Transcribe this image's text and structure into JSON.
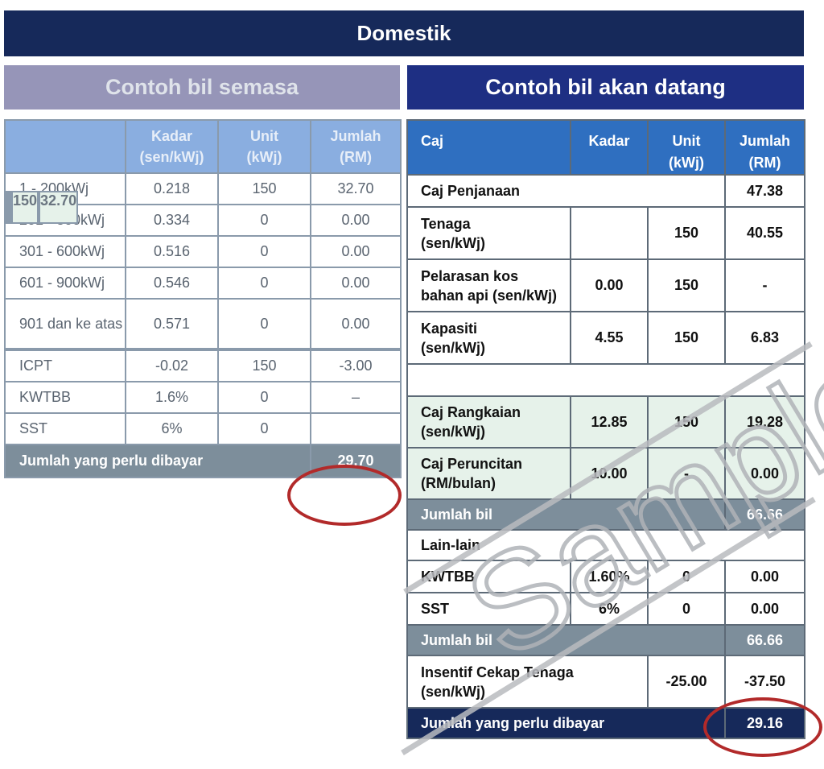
{
  "banner": "Domestik",
  "left": {
    "heading": "Contoh bil semasa",
    "headers": [
      "",
      "Kadar\n(sen/kWj)",
      "Unit\n(kWj)",
      "Jumlah\n(RM)"
    ],
    "rows": [
      {
        "range": "1 - 200kWj",
        "kadar": "0.218",
        "unit": "150",
        "jumlah": "32.70"
      },
      {
        "range": "201 - 300kWj",
        "kadar": "0.334",
        "unit": "0",
        "jumlah": "0.00"
      },
      {
        "range": "301 - 600kWj",
        "kadar": "0.516",
        "unit": "0",
        "jumlah": "0.00"
      },
      {
        "range": "601 - 900kWj",
        "kadar": "0.546",
        "unit": "0",
        "jumlah": "0.00"
      },
      {
        "range": "901 dan ke atas",
        "kadar": "0.571",
        "unit": "0",
        "jumlah": "0.00"
      }
    ],
    "subtotal": {
      "unit": "150",
      "jumlah": "32.70"
    },
    "extras": [
      {
        "range": "ICPT",
        "kadar": "-0.02",
        "unit": "150",
        "jumlah": "-3.00"
      },
      {
        "range": "KWTBB",
        "kadar": "1.6%",
        "unit": "0",
        "jumlah": "–"
      },
      {
        "range": "SST",
        "kadar": "6%",
        "unit": "0",
        "jumlah": ""
      }
    ],
    "total": {
      "label": "Jumlah yang perlu dibayar",
      "value": "29.70"
    }
  },
  "right": {
    "heading": "Contoh bil akan datang",
    "headers": [
      "Caj",
      "Kadar",
      "Unit\n(kWj)",
      "Jumlah\n(RM)"
    ],
    "penjanaan": {
      "label": "Caj Penjanaan",
      "jumlah": "47.38"
    },
    "tenaga": {
      "label": "Tenaga\n(sen/kWj)",
      "kadar": "",
      "unit": "150",
      "jumlah": "40.55"
    },
    "pelarasan": {
      "label": "Pelarasan kos\nbahan api (sen/kWj)",
      "kadar": "0.00",
      "unit": "150",
      "jumlah": "-"
    },
    "kapasiti": {
      "label": "Kapasiti\n(sen/kWj)",
      "kadar": "4.55",
      "unit": "150",
      "jumlah": "6.83"
    },
    "rangkaian": {
      "label": "Caj Rangkaian\n(sen/kWj)",
      "kadar": "12.85",
      "unit": "150",
      "jumlah": "19.28"
    },
    "peruncitan": {
      "label": "Caj Peruncitan\n(RM/bulan)",
      "kadar": "10.00",
      "unit": "-",
      "jumlah": "0.00"
    },
    "jumlah_bil_1": {
      "label": "Jumlah bil",
      "value": "66.66"
    },
    "lain_lain": "Lain-lain",
    "kwtbb": {
      "label": "KWTBB",
      "kadar": "1.60%",
      "unit": "0",
      "jumlah": "0.00"
    },
    "sst": {
      "label": "SST",
      "kadar": "6%",
      "unit": "0",
      "jumlah": "0.00"
    },
    "jumlah_bil_2": {
      "label": "Jumlah bil",
      "value": "66.66"
    },
    "insentif": {
      "label": "Insentif Cekap Tenaga\n(sen/kWj)",
      "kadar": "",
      "unit": "-25.00",
      "jumlah": "-37.50"
    },
    "total": {
      "label": "Jumlah yang perlu dibayar",
      "value": "29.16"
    }
  },
  "watermark": "Sample"
}
